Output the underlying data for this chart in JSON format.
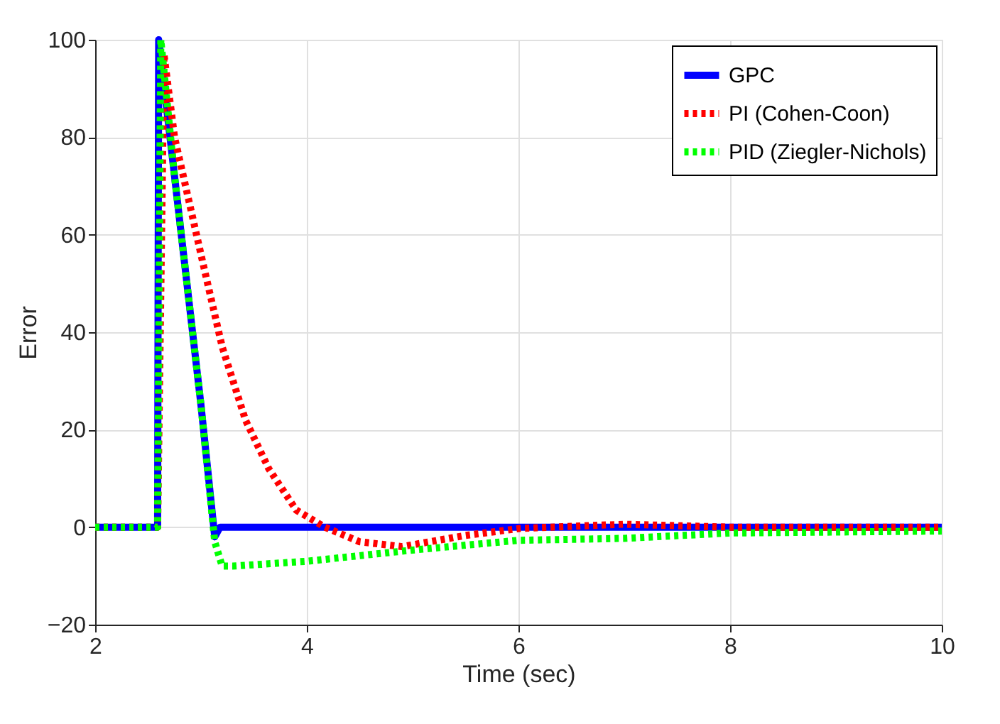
{
  "chart_data": {
    "type": "line",
    "xlabel": "Time (sec)",
    "ylabel": "Error",
    "xlim": [
      2,
      10
    ],
    "ylim": [
      -20,
      100
    ],
    "xticks": [
      2,
      4,
      6,
      8,
      10
    ],
    "yticks": [
      -20,
      0,
      20,
      40,
      60,
      80,
      100
    ],
    "grid": true,
    "legend": "top right",
    "marker": "none",
    "series": [
      {
        "name": "GPC",
        "color": "#0000ff",
        "line_style": "solid",
        "x": [
          2,
          2.59,
          2.6,
          2.75,
          3.0,
          3.13,
          3.18,
          3.2,
          4,
          6,
          8,
          10
        ],
        "values": [
          0,
          0,
          100,
          72,
          25,
          -2,
          0,
          0,
          0,
          0,
          0,
          0
        ]
      },
      {
        "name": "PI (Cohen-Coon)",
        "color": "#ff0000",
        "line_style": "dotted",
        "x": [
          2,
          2.59,
          2.65,
          2.75,
          3.02,
          3.2,
          3.42,
          3.64,
          3.9,
          4.17,
          4.5,
          4.9,
          5.5,
          6,
          7,
          8,
          10
        ],
        "values": [
          0,
          0,
          97,
          80,
          54,
          37,
          22,
          12,
          3.5,
          0,
          -3,
          -4,
          -1.7,
          -0.3,
          0.6,
          0,
          0
        ]
      },
      {
        "name": "PID (Ziegler-Nichols)",
        "color": "#00ff00",
        "line_style": "dotted",
        "x": [
          2,
          2.59,
          2.62,
          2.75,
          3.0,
          3.13,
          3.2,
          3.3,
          4,
          5,
          6,
          7,
          8,
          10
        ],
        "values": [
          0,
          0,
          100,
          72,
          25,
          -3,
          -8,
          -8,
          -7,
          -4.7,
          -2.7,
          -2.3,
          -1.2,
          -0.8
        ]
      }
    ]
  }
}
